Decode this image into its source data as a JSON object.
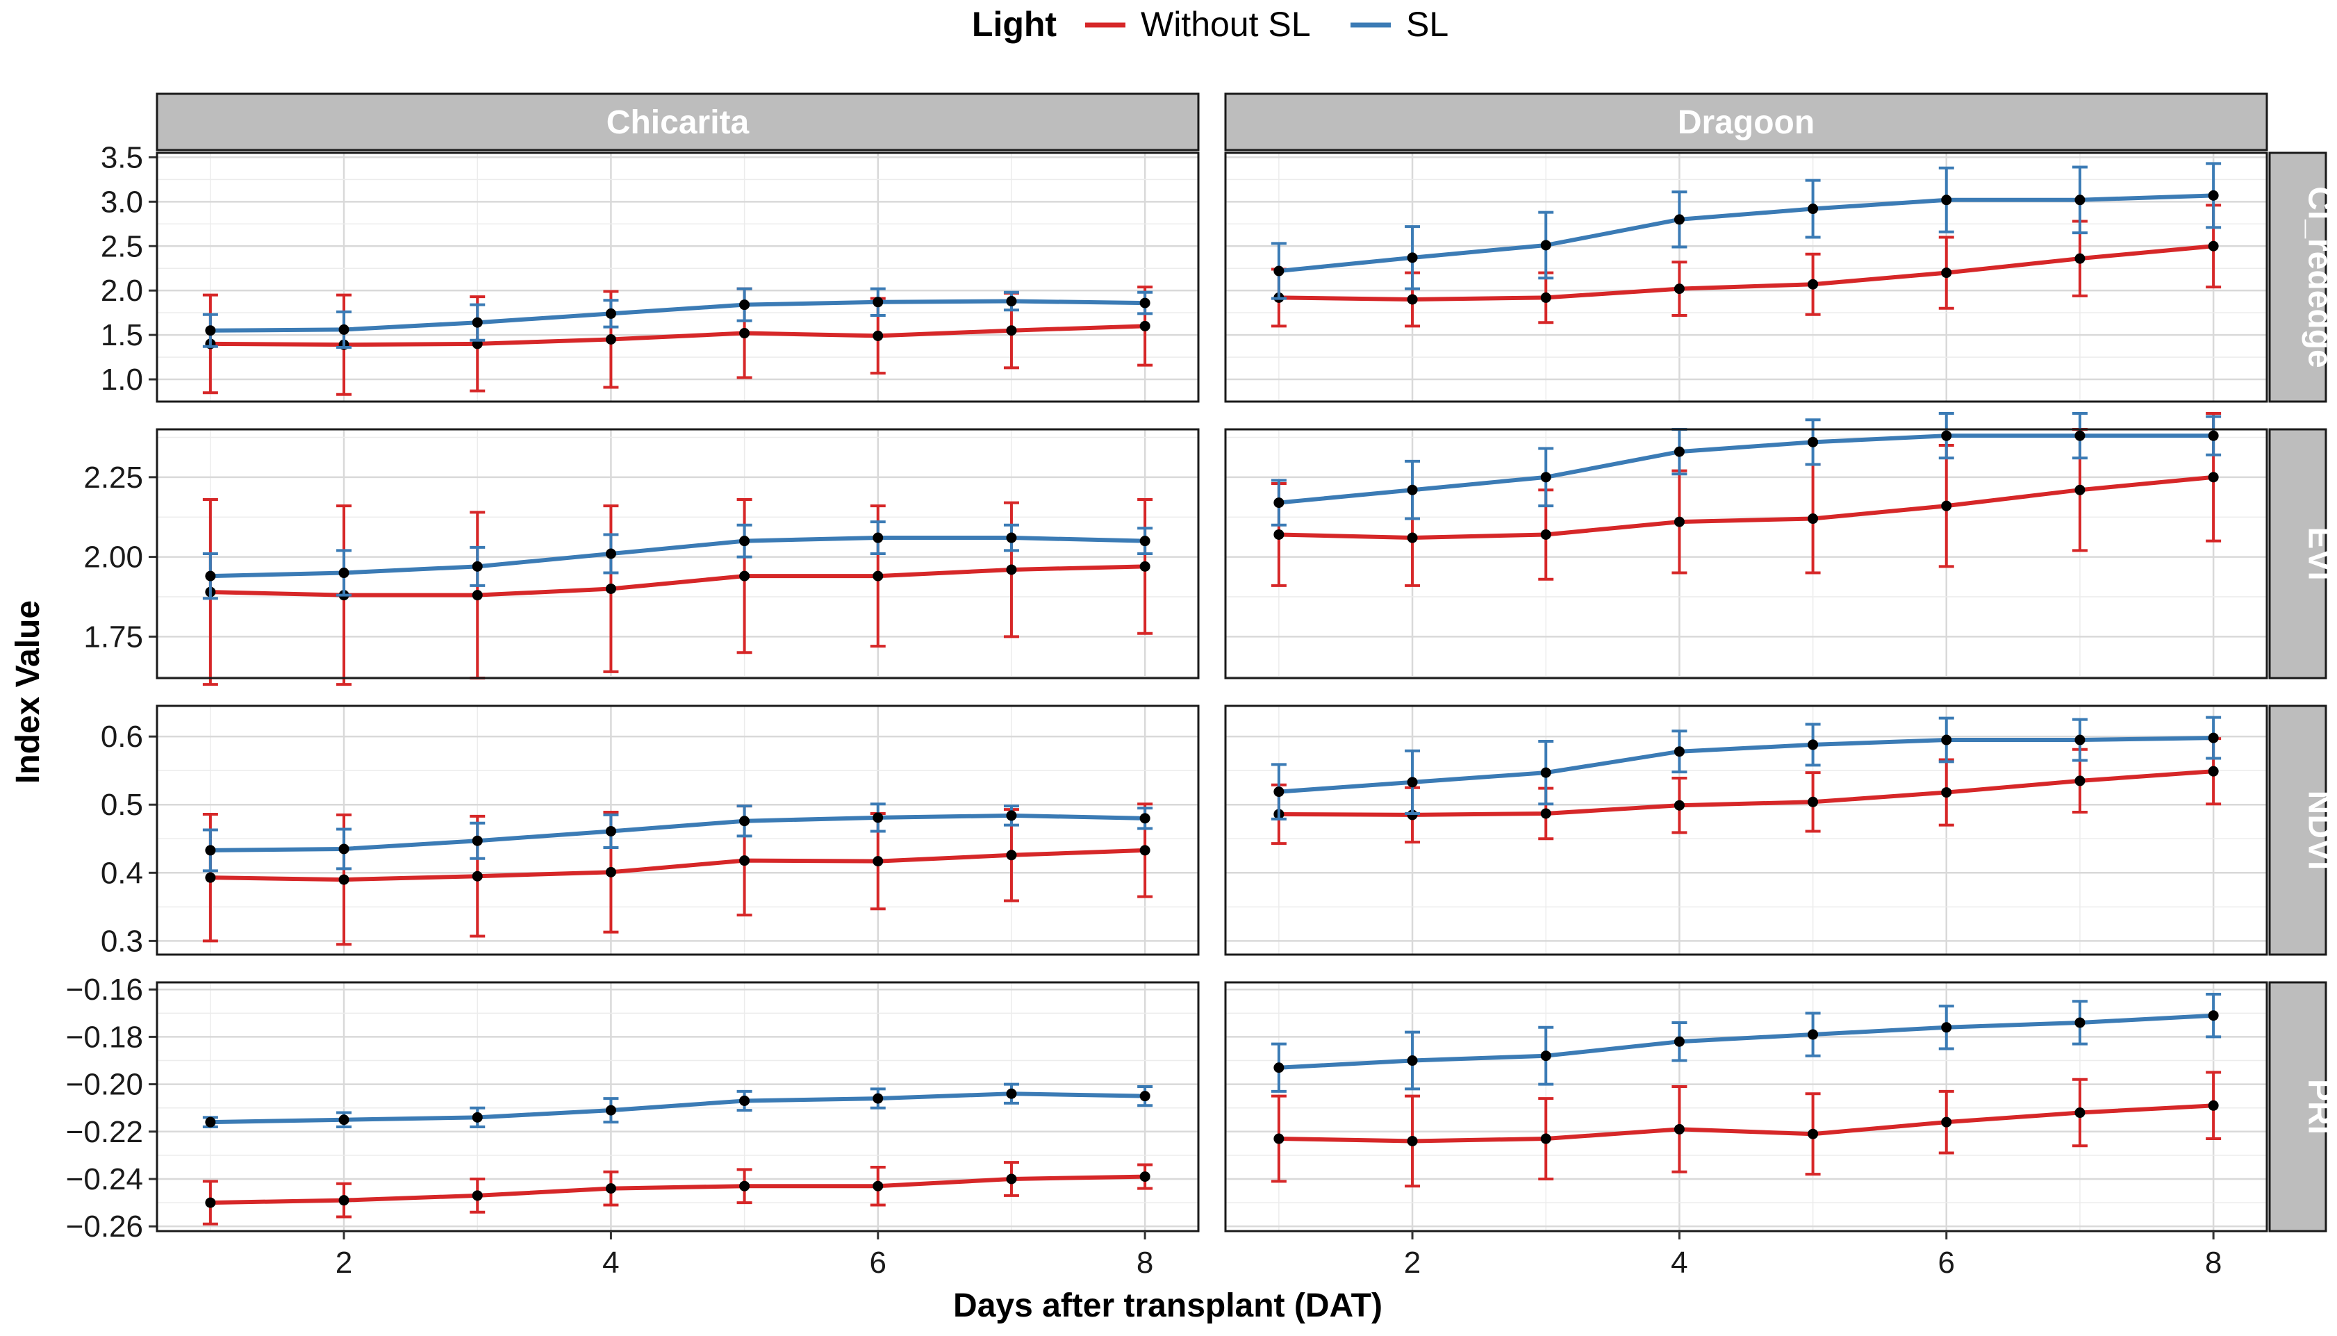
{
  "chart_data": {
    "type": "line",
    "xlabel": "Days after transplant (DAT)",
    "ylabel": "Index Value",
    "legend": {
      "title": "Light",
      "position": "top",
      "entries": [
        {
          "name": "Without SL",
          "color": "#d62728"
        },
        {
          "name": "SL",
          "color": "#3b7bb5"
        }
      ]
    },
    "columns": [
      "Chicarita",
      "Dragoon"
    ],
    "rows": [
      "CI_rededge",
      "EVI",
      "NDVI",
      "PRI"
    ],
    "x": [
      1,
      2,
      3,
      4,
      5,
      6,
      7,
      8
    ],
    "xticks": [
      "2",
      "4",
      "6",
      "8"
    ],
    "xlim": [
      0.6,
      8.4
    ],
    "grid": true,
    "panels": [
      {
        "row": "CI_rededge",
        "ylim": [
          0.75,
          3.55
        ],
        "yticks": [
          1.0,
          1.5,
          2.0,
          2.5,
          3.0,
          3.5
        ],
        "ytick_labels": [
          "1.0",
          "1.5",
          "2.0",
          "2.5",
          "3.0",
          "3.5"
        ],
        "facets": {
          "Chicarita": {
            "Without SL": {
              "y": [
                1.4,
                1.39,
                1.4,
                1.45,
                1.52,
                1.49,
                1.55,
                1.6
              ],
              "err": [
                0.55,
                0.56,
                0.53,
                0.54,
                0.5,
                0.42,
                0.42,
                0.44
              ]
            },
            "SL": {
              "y": [
                1.55,
                1.56,
                1.64,
                1.74,
                1.84,
                1.87,
                1.88,
                1.86
              ],
              "err": [
                0.18,
                0.2,
                0.2,
                0.15,
                0.18,
                0.15,
                0.1,
                0.12
              ]
            }
          },
          "Dragoon": {
            "Without SL": {
              "y": [
                1.92,
                1.9,
                1.92,
                2.02,
                2.07,
                2.2,
                2.36,
                2.5
              ],
              "err": [
                0.32,
                0.3,
                0.28,
                0.3,
                0.34,
                0.4,
                0.42,
                0.46
              ]
            },
            "SL": {
              "y": [
                2.22,
                2.37,
                2.51,
                2.8,
                2.92,
                3.02,
                3.02,
                3.07
              ],
              "err": [
                0.31,
                0.35,
                0.37,
                0.31,
                0.32,
                0.36,
                0.37,
                0.36
              ]
            }
          }
        }
      },
      {
        "row": "EVI",
        "ylim": [
          1.62,
          2.4
        ],
        "yticks": [
          1.75,
          2.0,
          2.25
        ],
        "ytick_labels": [
          "1.75",
          "2.00",
          "2.25"
        ],
        "facets": {
          "Chicarita": {
            "Without SL": {
              "y": [
                1.89,
                1.88,
                1.88,
                1.9,
                1.94,
                1.94,
                1.96,
                1.97
              ],
              "err": [
                0.29,
                0.28,
                0.26,
                0.26,
                0.24,
                0.22,
                0.21,
                0.21
              ]
            },
            "SL": {
              "y": [
                1.94,
                1.95,
                1.97,
                2.01,
                2.05,
                2.06,
                2.06,
                2.05
              ],
              "err": [
                0.07,
                0.07,
                0.06,
                0.06,
                0.05,
                0.05,
                0.04,
                0.04
              ]
            }
          },
          "Dragoon": {
            "Without SL": {
              "y": [
                2.07,
                2.06,
                2.07,
                2.11,
                2.12,
                2.16,
                2.21,
                2.25
              ],
              "err": [
                0.16,
                0.15,
                0.14,
                0.16,
                0.17,
                0.19,
                0.19,
                0.2
              ]
            },
            "SL": {
              "y": [
                2.17,
                2.21,
                2.25,
                2.33,
                2.36,
                2.38,
                2.38,
                2.38
              ],
              "err": [
                0.07,
                0.09,
                0.09,
                0.07,
                0.07,
                0.07,
                0.07,
                0.06
              ]
            }
          }
        }
      },
      {
        "row": "NDVI",
        "ylim": [
          0.28,
          0.645
        ],
        "yticks": [
          0.3,
          0.4,
          0.5,
          0.6
        ],
        "ytick_labels": [
          "0.3",
          "0.4",
          "0.5",
          "0.6"
        ],
        "facets": {
          "Chicarita": {
            "Without SL": {
              "y": [
                0.393,
                0.39,
                0.395,
                0.401,
                0.418,
                0.417,
                0.426,
                0.433
              ],
              "err": [
                0.093,
                0.095,
                0.088,
                0.088,
                0.08,
                0.07,
                0.067,
                0.068
              ]
            },
            "SL": {
              "y": [
                0.433,
                0.435,
                0.447,
                0.461,
                0.476,
                0.481,
                0.484,
                0.48
              ],
              "err": [
                0.03,
                0.029,
                0.026,
                0.024,
                0.022,
                0.02,
                0.014,
                0.015
              ]
            }
          },
          "Dragoon": {
            "Without SL": {
              "y": [
                0.486,
                0.485,
                0.487,
                0.499,
                0.504,
                0.518,
                0.535,
                0.549
              ],
              "err": [
                0.043,
                0.04,
                0.037,
                0.04,
                0.043,
                0.048,
                0.046,
                0.048
              ]
            },
            "SL": {
              "y": [
                0.519,
                0.533,
                0.547,
                0.578,
                0.588,
                0.595,
                0.595,
                0.598
              ],
              "err": [
                0.04,
                0.046,
                0.046,
                0.03,
                0.03,
                0.032,
                0.03,
                0.03
              ]
            }
          }
        }
      },
      {
        "row": "PRI",
        "ylim": [
          -0.262,
          -0.157
        ],
        "yticks": [
          -0.26,
          -0.24,
          -0.22,
          -0.2,
          -0.18,
          -0.16
        ],
        "ytick_labels": [
          "−0.26",
          "−0.24",
          "−0.22",
          "−0.20",
          "−0.18",
          "−0.16"
        ],
        "facets": {
          "Chicarita": {
            "Without SL": {
              "y": [
                -0.25,
                -0.249,
                -0.247,
                -0.244,
                -0.243,
                -0.243,
                -0.24,
                -0.239
              ],
              "err": [
                0.009,
                0.007,
                0.007,
                0.007,
                0.007,
                0.008,
                0.007,
                0.005
              ]
            },
            "SL": {
              "y": [
                -0.216,
                -0.215,
                -0.214,
                -0.211,
                -0.207,
                -0.206,
                -0.204,
                -0.205
              ],
              "err": [
                0.002,
                0.003,
                0.004,
                0.005,
                0.004,
                0.004,
                0.004,
                0.004
              ]
            }
          },
          "Dragoon": {
            "Without SL": {
              "y": [
                -0.223,
                -0.224,
                -0.223,
                -0.219,
                -0.221,
                -0.216,
                -0.212,
                -0.209
              ],
              "err": [
                0.018,
                0.019,
                0.017,
                0.018,
                0.017,
                0.013,
                0.014,
                0.014
              ]
            },
            "SL": {
              "y": [
                -0.193,
                -0.19,
                -0.188,
                -0.182,
                -0.179,
                -0.176,
                -0.174,
                -0.171
              ],
              "err": [
                0.01,
                0.012,
                0.012,
                0.008,
                0.009,
                0.009,
                0.009,
                0.009
              ]
            }
          }
        }
      }
    ]
  }
}
